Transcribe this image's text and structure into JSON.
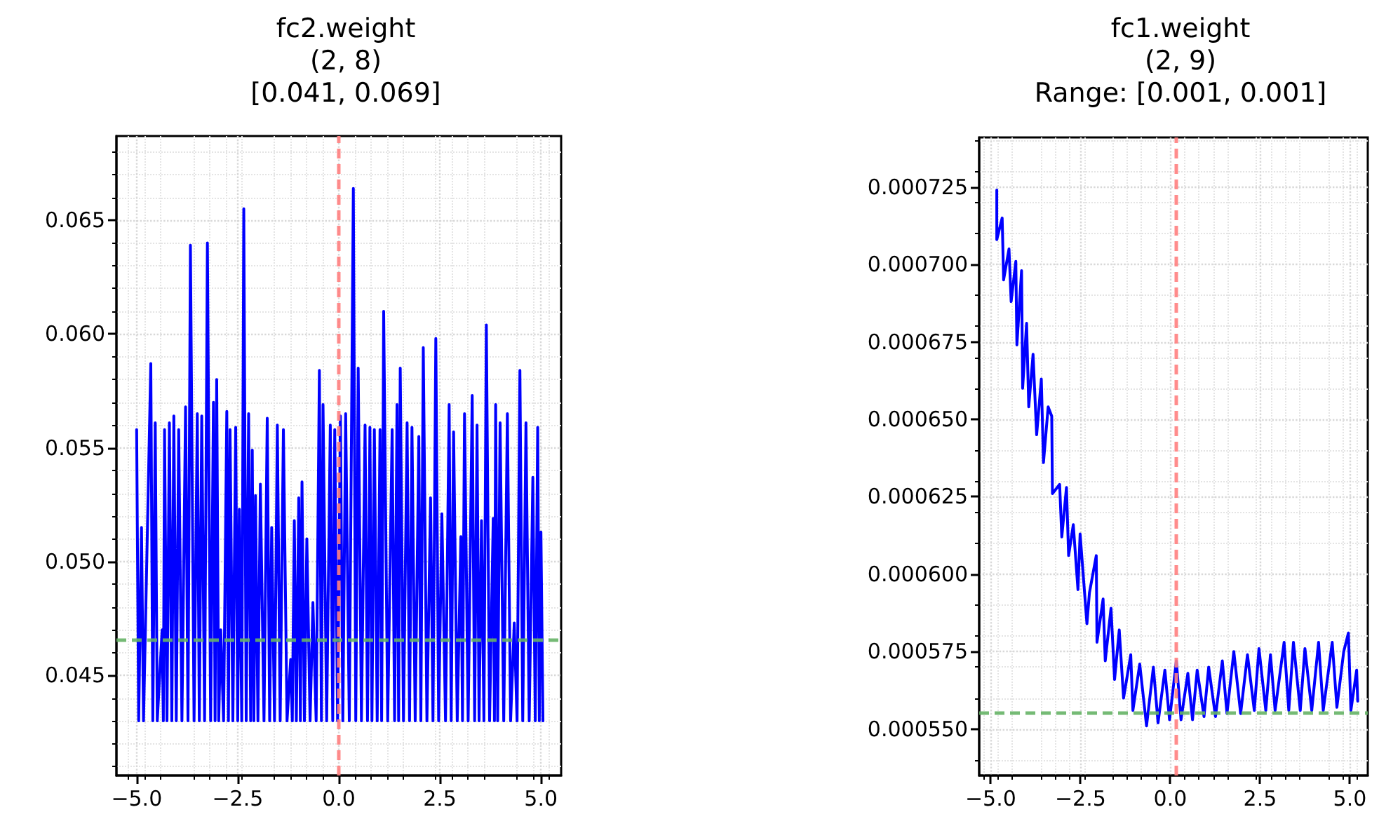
{
  "chart_data": [
    {
      "type": "line",
      "title": "fc2.weight\n(2, 8)\n[0.041, 0.069]",
      "color": "#0000ff",
      "x": [
        -5.0,
        -4.95,
        -4.88,
        -4.83,
        -4.65,
        -4.6,
        -4.54,
        -4.49,
        -4.37,
        -4.34,
        -4.31,
        -4.25,
        -4.19,
        -4.13,
        -4.08,
        -4.02,
        -3.96,
        -3.88,
        -3.79,
        -3.73,
        -3.67,
        -3.58,
        -3.5,
        -3.45,
        -3.39,
        -3.32,
        -3.25,
        -3.17,
        -3.1,
        -3.06,
        -3.02,
        -2.97,
        -2.92,
        -2.85,
        -2.77,
        -2.73,
        -2.69,
        -2.62,
        -2.55,
        -2.5,
        -2.46,
        -2.4,
        -2.35,
        -2.29,
        -2.23,
        -2.18,
        -2.14,
        -2.1,
        -2.06,
        -2.0,
        -1.94,
        -1.85,
        -1.77,
        -1.71,
        -1.66,
        -1.59,
        -1.52,
        -1.45,
        -1.37,
        -1.28,
        -1.19,
        -1.15,
        -1.1,
        -1.05,
        -0.99,
        -0.95,
        -0.91,
        -0.85,
        -0.79,
        -0.71,
        -0.64,
        -0.56,
        -0.48,
        -0.43,
        -0.39,
        -0.3,
        -0.21,
        -0.15,
        -0.1,
        -0.03,
        0.04,
        0.1,
        0.17,
        0.26,
        0.36,
        0.42,
        0.48,
        0.56,
        0.65,
        0.71,
        0.77,
        0.82,
        0.88,
        0.95,
        1.02,
        1.06,
        1.11,
        1.21,
        1.32,
        1.38,
        1.44,
        1.48,
        1.52,
        1.6,
        1.69,
        1.75,
        1.81,
        1.89,
        1.98,
        2.03,
        2.09,
        2.18,
        2.27,
        2.33,
        2.4,
        2.47,
        2.55,
        2.64,
        2.73,
        2.78,
        2.84,
        2.93,
        3.02,
        3.06,
        3.11,
        3.2,
        3.3,
        3.36,
        3.42,
        3.47,
        3.53,
        3.59,
        3.65,
        3.73,
        3.82,
        3.85,
        3.88,
        3.93,
        3.99,
        4.08,
        4.17,
        4.25,
        4.34,
        4.41,
        4.48,
        4.55,
        4.63,
        4.71,
        4.8,
        4.86,
        4.92,
        4.96,
        5.0,
        5.05
      ],
      "values": [
        0.0558,
        0.043,
        0.0515,
        0.043,
        0.0587,
        0.043,
        0.0561,
        0.043,
        0.047,
        0.043,
        0.0558,
        0.043,
        0.0561,
        0.043,
        0.0564,
        0.043,
        0.0558,
        0.043,
        0.0568,
        0.043,
        0.0639,
        0.043,
        0.0565,
        0.043,
        0.0564,
        0.043,
        0.064,
        0.043,
        0.057,
        0.043,
        0.058,
        0.043,
        0.047,
        0.043,
        0.0566,
        0.043,
        0.0558,
        0.043,
        0.0559,
        0.043,
        0.0523,
        0.043,
        0.0655,
        0.043,
        0.0565,
        0.043,
        0.0549,
        0.043,
        0.0529,
        0.043,
        0.0534,
        0.043,
        0.0563,
        0.043,
        0.0515,
        0.043,
        0.056,
        0.043,
        0.0558,
        0.043,
        0.0457,
        0.043,
        0.0518,
        0.043,
        0.0528,
        0.043,
        0.0535,
        0.043,
        0.051,
        0.043,
        0.0482,
        0.043,
        0.0584,
        0.043,
        0.0569,
        0.043,
        0.056,
        0.043,
        0.0558,
        0.043,
        0.0564,
        0.043,
        0.0565,
        0.043,
        0.0664,
        0.043,
        0.0585,
        0.043,
        0.056,
        0.043,
        0.0559,
        0.043,
        0.0558,
        0.043,
        0.0558,
        0.043,
        0.061,
        0.043,
        0.0558,
        0.043,
        0.0569,
        0.043,
        0.0585,
        0.043,
        0.0561,
        0.043,
        0.0559,
        0.043,
        0.0555,
        0.043,
        0.0594,
        0.043,
        0.0528,
        0.043,
        0.0598,
        0.043,
        0.0521,
        0.043,
        0.0569,
        0.043,
        0.0557,
        0.043,
        0.0511,
        0.043,
        0.0565,
        0.043,
        0.0573,
        0.043,
        0.056,
        0.043,
        0.0518,
        0.043,
        0.0604,
        0.043,
        0.0519,
        0.043,
        0.0569,
        0.043,
        0.0561,
        0.043,
        0.0565,
        0.043,
        0.0473,
        0.043,
        0.0584,
        0.043,
        0.0561,
        0.043,
        0.0537,
        0.043,
        0.0559,
        0.043,
        0.0513,
        0.043
      ],
      "xlim": [
        -5.5,
        5.5
      ],
      "ylim": [
        0.0406,
        0.0687
      ],
      "xticks": [
        {
          "value": -5,
          "label": "−5.0"
        },
        {
          "value": -2.5,
          "label": "−2.5"
        },
        {
          "value": 0,
          "label": "0.0"
        },
        {
          "value": 2.5,
          "label": "2.5"
        },
        {
          "value": 5,
          "label": "5.0"
        }
      ],
      "yticks": [
        0.045,
        {
          "value": 0.05,
          "label": "0.050"
        },
        0.055,
        {
          "value": 0.06,
          "label": "0.060"
        },
        0.065
      ],
      "grid": true,
      "ref_lines": [
        {
          "axis": "x",
          "value": 0,
          "color": "#ff7f7f",
          "line_style": "dashed"
        },
        {
          "axis": "y",
          "value": 0.04654,
          "color": "#66b366",
          "line_style": "dashed"
        }
      ]
    },
    {
      "type": "line",
      "title": "fc1.weight\n(2, 9)\nRange: [0.001, 0.001]",
      "color": "#0000ff",
      "x": [
        -4.83,
        -4.83,
        -4.68,
        -4.64,
        -4.49,
        -4.43,
        -4.3,
        -4.27,
        -4.14,
        -4.11,
        -4.0,
        -3.94,
        -3.82,
        -3.72,
        -3.59,
        -3.53,
        -3.4,
        -3.3,
        -3.28,
        -3.08,
        -3.02,
        -2.89,
        -2.83,
        -2.7,
        -2.57,
        -2.51,
        -2.32,
        -2.25,
        -2.06,
        -2.04,
        -1.87,
        -1.81,
        -1.65,
        -1.55,
        -1.42,
        -1.3,
        -1.1,
        -1.04,
        -0.85,
        -0.66,
        -0.47,
        -0.34,
        -0.15,
        -0.02,
        0.17,
        0.3,
        0.49,
        0.62,
        0.75,
        0.94,
        1.07,
        1.26,
        1.45,
        1.58,
        1.77,
        1.96,
        2.15,
        2.34,
        2.47,
        2.66,
        2.79,
        2.92,
        3.17,
        3.3,
        3.43,
        3.62,
        3.75,
        3.94,
        4.13,
        4.26,
        4.51,
        4.64,
        4.83,
        4.96,
        5.03,
        5.19,
        5.22
      ],
      "values": [
        0.000724,
        0.000708,
        0.000715,
        0.000695,
        0.000705,
        0.000688,
        0.000701,
        0.000674,
        0.000698,
        0.00066,
        0.000681,
        0.000654,
        0.000671,
        0.000645,
        0.000663,
        0.000636,
        0.000654,
        0.000651,
        0.000626,
        0.000629,
        0.000612,
        0.000628,
        0.000606,
        0.000616,
        0.000595,
        0.000613,
        0.000584,
        0.000594,
        0.000606,
        0.000578,
        0.000592,
        0.000572,
        0.000589,
        0.000566,
        0.000582,
        0.00056,
        0.000574,
        0.000556,
        0.000571,
        0.000551,
        0.00057,
        0.000552,
        0.000569,
        0.000553,
        0.000572,
        0.000553,
        0.000568,
        0.000553,
        0.000569,
        0.000554,
        0.00057,
        0.000554,
        0.000572,
        0.000555,
        0.000575,
        0.000555,
        0.000574,
        0.000556,
        0.000576,
        0.000556,
        0.000574,
        0.000556,
        0.000578,
        0.000556,
        0.000578,
        0.000556,
        0.000576,
        0.000556,
        0.000578,
        0.000556,
        0.000578,
        0.000557,
        0.000575,
        0.000581,
        0.000556,
        0.000569,
        0.000559
      ],
      "xlim": [
        -5.32,
        5.5
      ],
      "ylim": [
        0.000535,
        0.000741
      ],
      "xticks": [
        {
          "value": -5,
          "label": "−5.0"
        },
        {
          "value": -2.5,
          "label": "−2.5"
        },
        {
          "value": 0,
          "label": "0.0"
        },
        {
          "value": 2.5,
          "label": "2.5"
        },
        {
          "value": 5,
          "label": "5.0"
        }
      ],
      "yticks": [
        {
          "value": 0.00055,
          "label": "0.000550"
        },
        0.000575,
        {
          "value": 0.0006,
          "label": "0.000600"
        },
        0.000625,
        {
          "value": 0.00065,
          "label": "0.000650"
        },
        0.000675,
        {
          "value": 0.0007,
          "label": "0.000700"
        },
        0.000725
      ],
      "grid": true,
      "ref_lines": [
        {
          "axis": "x",
          "value": 0.17,
          "color": "#ff7f7f",
          "line_style": "dashed"
        },
        {
          "axis": "y",
          "value": 0.0005553,
          "color": "#66b366",
          "line_style": "dashed"
        }
      ]
    }
  ]
}
